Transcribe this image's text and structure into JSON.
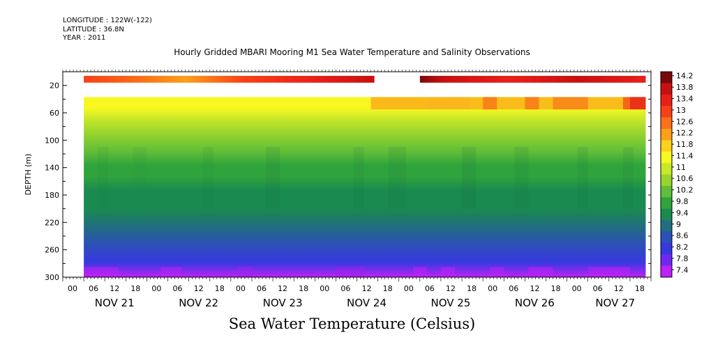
{
  "header": {
    "longitude": "LONGITUDE : 122W(-122)",
    "latitude": "LATITUDE : 36.8N",
    "year": "YEAR : 2011"
  },
  "title": "Hourly Gridded MBARI Mooring M1 Sea Water Temperature and Salinity Observations",
  "bottom_title": "Sea Water Temperature (Celsius)",
  "chart_data": {
    "type": "heatmap",
    "title": "Hourly Gridded MBARI Mooring M1 Sea Water Temperature and Salinity Observations",
    "xlabel": "",
    "ylabel": "DEPTH (m)",
    "x_unit": "hours since NOV 20 00",
    "xlim": [
      0,
      168
    ],
    "ylim": [
      300,
      0
    ],
    "y_ticks": [
      20,
      60,
      100,
      140,
      180,
      220,
      260,
      300
    ],
    "x_tick_labels": [
      "00",
      "06",
      "12",
      "18",
      "00",
      "06",
      "12",
      "18",
      "00",
      "06",
      "12",
      "18",
      "00",
      "06",
      "12",
      "18",
      "00",
      "06",
      "12",
      "18",
      "00",
      "06",
      "12",
      "18",
      "00",
      "06",
      "12",
      "18"
    ],
    "x_ticks_hours": [
      0,
      6,
      12,
      18,
      24,
      30,
      36,
      42,
      48,
      54,
      60,
      66,
      72,
      78,
      84,
      90,
      96,
      102,
      108,
      114,
      120,
      126,
      132,
      138,
      144,
      150,
      156,
      162
    ],
    "day_labels": [
      "NOV 21",
      "NOV 22",
      "NOV 23",
      "NOV 24",
      "NOV 25",
      "NOV 26",
      "NOV 27"
    ],
    "day_label_hours": [
      12,
      36,
      60,
      84,
      108,
      132,
      155
    ],
    "data_start_hour": 6,
    "data_end_hour": 166.5,
    "surface_layer_depth": [
      6,
      16
    ],
    "surface_gap_hours": [
      89,
      102
    ],
    "gap_depth": [
      16,
      37
    ],
    "colorbar": {
      "levels": [
        "14.2",
        "13.8",
        "13.4",
        "13",
        "12.6",
        "12.2",
        "11.8",
        "11.4",
        "11",
        "10.6",
        "10.2",
        "9.8",
        "9.4",
        "9",
        "8.6",
        "8.2",
        "7.8",
        "7.4"
      ],
      "colors": [
        "#7a0a0a",
        "#c81010",
        "#e8201a",
        "#f84018",
        "#fb7018",
        "#fba01a",
        "#fcd01c",
        "#f8f820",
        "#c8e82a",
        "#98d42e",
        "#62be38",
        "#30a43c",
        "#1a8a50",
        "#206e80",
        "#2c50b8",
        "#3838e0",
        "#7028f0",
        "#c020f8"
      ]
    },
    "data_summary": {
      "surface_temp_range": [
        12.8,
        14.2
      ],
      "temp_at_40m_range": [
        11.4,
        13.4
      ],
      "temp_at_300m_range": [
        7.4,
        8.2
      ]
    }
  }
}
